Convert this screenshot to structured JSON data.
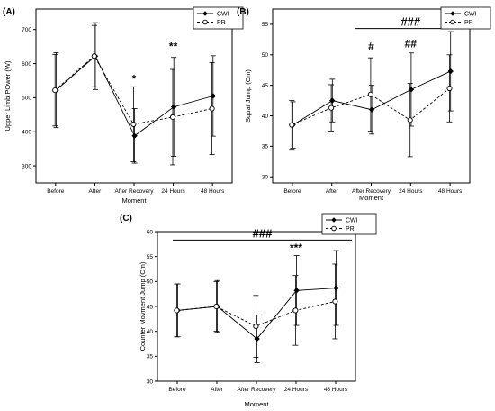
{
  "chart_data": [
    {
      "type": "line",
      "panel_label": "(A)",
      "xlabel": "Moment",
      "ylabel": "Upper Limb POwer (W)",
      "categories": [
        "Before",
        "After",
        "After Recovery",
        "24 Hours",
        "48 Hours"
      ],
      "yticks": [
        "300",
        "400",
        "500",
        "600",
        "700"
      ],
      "ylim": [
        250,
        760
      ],
      "series": [
        {
          "name": "CWI",
          "style": "solid",
          "marker": "filled-diamond",
          "values": [
            522,
            622,
            388,
            473,
            505
          ],
          "errors": [
            110,
            98,
            80,
            145,
            118
          ]
        },
        {
          "name": "PR",
          "style": "dashed",
          "marker": "open-circle",
          "values": [
            522,
            622,
            422,
            443,
            468
          ],
          "errors": [
            105,
            90,
            110,
            140,
            135
          ]
        }
      ],
      "annotations": [
        {
          "text": "*",
          "category": "After Recovery",
          "y": 545
        },
        {
          "text": "**",
          "category": "24 Hours",
          "y": 640
        }
      ],
      "bracket": null,
      "legend_position": "top-right"
    },
    {
      "type": "line",
      "panel_label": "(B)",
      "xlabel": "Moment",
      "ylabel": "Squat Jump (Cm)",
      "categories": [
        "Before",
        "After",
        "After Recovery",
        "24 Hours",
        "48 Hours"
      ],
      "yticks": [
        "30",
        "35",
        "40",
        "45",
        "50",
        "55"
      ],
      "ylim": [
        29,
        57.5
      ],
      "series": [
        {
          "name": "CWI",
          "style": "solid",
          "marker": "filled-diamond",
          "values": [
            38.5,
            42.5,
            41.0,
            44.3,
            47.3
          ],
          "errors": [
            3.8,
            3.5,
            4.0,
            6.0,
            6.5
          ]
        },
        {
          "name": "PR",
          "style": "dashed",
          "marker": "open-circle",
          "values": [
            38.5,
            41.3,
            43.5,
            39.3,
            44.5
          ],
          "errors": [
            4.0,
            3.8,
            6.0,
            6.0,
            5.5
          ]
        }
      ],
      "annotations": [
        {
          "text": "#",
          "category": "After Recovery",
          "y": 50.8
        },
        {
          "text": "##",
          "category": "24 Hours",
          "y": 51.2
        }
      ],
      "bracket": {
        "text": "###",
        "from": "After Recovery",
        "to": "48 Hours",
        "y": 54.3
      },
      "legend_position": "top-right"
    },
    {
      "type": "line",
      "panel_label": "(C)",
      "xlabel": "Moment",
      "ylabel": "Counter Movment Jump (Cm)",
      "categories": [
        "Before",
        "After",
        "After Recovery",
        "24 Hours",
        "48 Hours"
      ],
      "yticks": [
        "30",
        "35",
        "40",
        "45",
        "50",
        "55",
        "60"
      ],
      "ylim": [
        30,
        60
      ],
      "series": [
        {
          "name": "CWI",
          "style": "solid",
          "marker": "filled-diamond",
          "values": [
            44.2,
            45.0,
            38.5,
            48.2,
            48.7
          ],
          "errors": [
            5.3,
            5.2,
            4.8,
            7.0,
            7.5
          ]
        },
        {
          "name": "PR",
          "style": "dashed",
          "marker": "open-circle",
          "values": [
            44.2,
            45.0,
            41.0,
            44.2,
            46.0
          ],
          "errors": [
            5.3,
            5.0,
            6.2,
            7.0,
            7.5
          ]
        }
      ],
      "annotations": [
        {
          "text": "***",
          "category": "24 Hours",
          "y": 56.0
        }
      ],
      "bracket": {
        "text": "###",
        "from": "Before",
        "to": "48 Hours",
        "y": 58.3
      },
      "legend_position": "top-right"
    }
  ]
}
